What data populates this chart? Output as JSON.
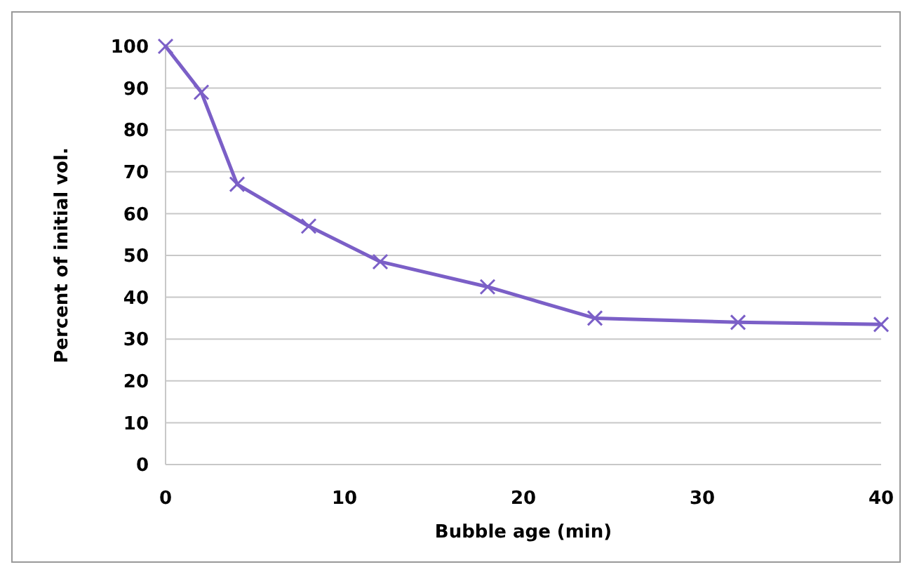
{
  "chart_data": {
    "type": "line",
    "xlabel": "Bubble age (min)",
    "ylabel": "Percent of initial vol.",
    "x": [
      0,
      2,
      4,
      8,
      12,
      18,
      24,
      32,
      40
    ],
    "series": [
      {
        "color": "#7b5fc7",
        "values": [
          100,
          89,
          67,
          57,
          48.5,
          42.5,
          35,
          34,
          33.5
        ]
      }
    ],
    "xlim": [
      0,
      40
    ],
    "xticks": [
      0,
      10,
      20,
      30,
      40
    ],
    "ylim": [
      0,
      100
    ],
    "yticks": [
      0,
      10,
      20,
      30,
      40,
      50,
      60,
      70,
      80,
      90,
      100
    ],
    "grid": "y",
    "marker": "cross",
    "line_style": "solid"
  }
}
